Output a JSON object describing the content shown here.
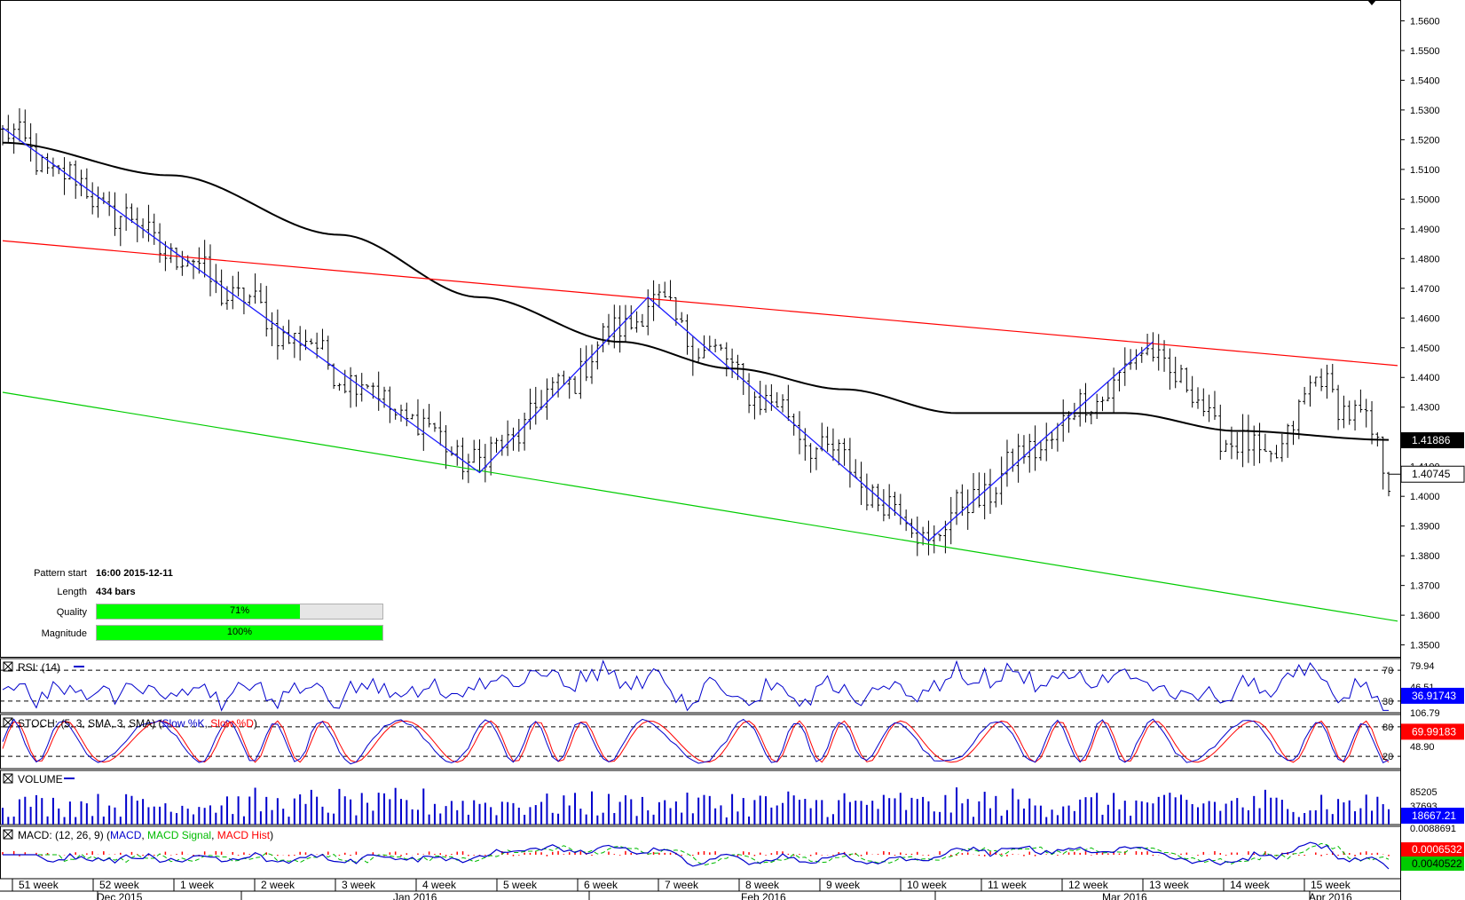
{
  "chart_data": {
    "type": "candlestick",
    "price_axis": {
      "ticks": [
        "1.5600",
        "1.5500",
        "1.5400",
        "1.5300",
        "1.5200",
        "1.5100",
        "1.5000",
        "1.4900",
        "1.4800",
        "1.4700",
        "1.4600",
        "1.4500",
        "1.4400",
        "1.4300",
        "1.4100",
        "1.4000",
        "1.3900",
        "1.3800",
        "1.3700",
        "1.3600",
        "1.3500"
      ],
      "ylim": [
        1.346,
        1.567
      ],
      "current_price": "1.40745",
      "moving_average_value": "1.41886"
    },
    "time_axis": {
      "weeks": [
        "51 week",
        "52 week",
        "1 week",
        "2 week",
        "3 week",
        "4 week",
        "5 week",
        "6 week",
        "7 week",
        "8 week",
        "9 week",
        "10 week",
        "11 week",
        "12 week",
        "13 week",
        "14 week",
        "15 week"
      ],
      "months": [
        "Dec 2015",
        "Jan 2016",
        "Feb 2016",
        "Mar 2016",
        "Apr 2016"
      ]
    },
    "zigzag": [
      {
        "bar": 0,
        "price": 1.524
      },
      {
        "bar": 85,
        "price": 1.408
      },
      {
        "bar": 115,
        "price": 1.467
      },
      {
        "bar": 165,
        "price": 1.385
      },
      {
        "bar": 205,
        "price": 1.452
      }
    ],
    "channel_upper": [
      {
        "bar": 0,
        "price": 1.486
      },
      {
        "bar": 247,
        "price": 1.444
      }
    ],
    "channel_lower": [
      {
        "bar": 0,
        "price": 1.435
      },
      {
        "bar": 247,
        "price": 1.358
      }
    ],
    "pattern": {
      "start_label": "Pattern start",
      "start_value": "16:00 2015-12-11",
      "length_label": "Length",
      "length_value": "434 bars",
      "quality_label": "Quality",
      "quality_value": "71%",
      "quality": 71,
      "magnitude_label": "Magnitude",
      "magnitude_value": "100%",
      "magnitude": 100
    },
    "indicators": {
      "rsi": {
        "title": "RSI: (14)",
        "levels": [
          "70",
          "30"
        ],
        "axis_ticks": [
          "79.94",
          "46.51"
        ],
        "value": "36.91743"
      },
      "stoch": {
        "title_prefix": "STOCH: (5, 3, SMA, 3, SMA) (",
        "k_label": "Slow %K",
        "sep": ", ",
        "d_label": "Slow %D",
        "title_suffix": ")",
        "levels": [
          "80",
          "20"
        ],
        "axis_ticks": [
          "106.79",
          "48.90"
        ],
        "value": "69.99183"
      },
      "volume": {
        "title": "VOLUME",
        "axis_ticks": [
          "85205",
          "37693"
        ],
        "value": "18667.21"
      },
      "macd": {
        "title_prefix": "MACD: (12, 26, 9) (",
        "macd_label": "MACD",
        "sep1": ", ",
        "signal_label": "MACD Signal",
        "sep2": ", ",
        "hist_label": "MACD Hist",
        "title_suffix": ")",
        "axis_ticks": [
          "0.0088691"
        ],
        "value_red": "0.0006532",
        "value_green": "0.0040522"
      }
    },
    "colors": {
      "zigzag": "#1a1aff",
      "upper_channel": "#ff0000",
      "lower_channel": "#00cc00",
      "moving_average": "#000000",
      "indicator_line": "#0000cc",
      "stoch_d": "#ff0000",
      "macd_signal": "#00bb00",
      "macd_hist": "#ff0000",
      "price_badge": "#0000ff"
    }
  }
}
